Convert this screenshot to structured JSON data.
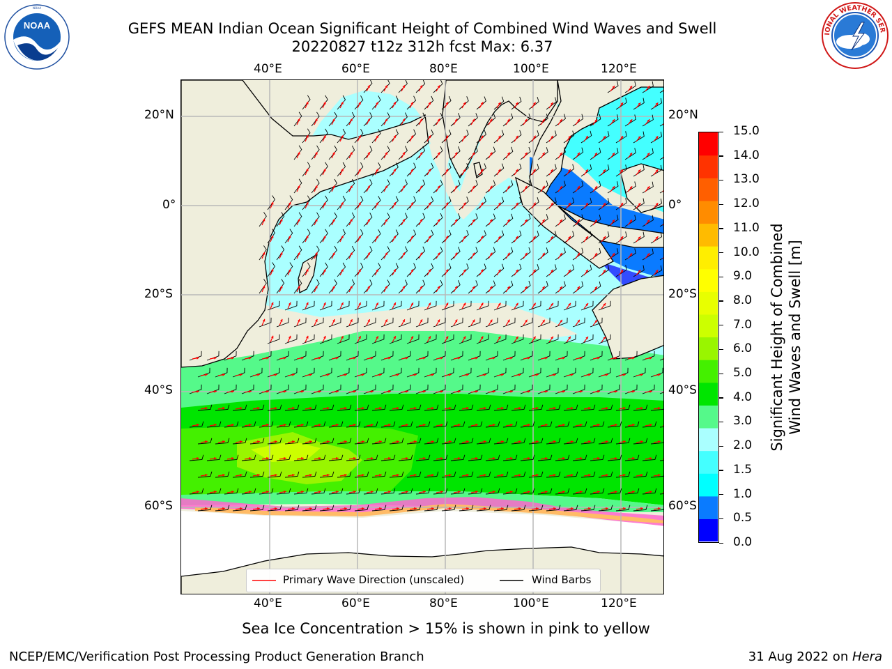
{
  "title": {
    "line1": "GEFS MEAN Indian Ocean Significant Height of Combined Wind Waves and Swell",
    "line2": "20220827 t12z 312h fcst   Max: 6.37"
  },
  "logos": {
    "left": "NOAA",
    "left_ring_text": "NATIONAL OCEANIC AND ATMOSPHERIC ADMINISTRATION · U.S. DEPARTMENT OF COMMERCE",
    "right_ring_text": "NATIONAL WEATHER SERVICE"
  },
  "map": {
    "lon_ticks_top": [
      "40°E",
      "60°E",
      "80°E",
      "100°E",
      "120°E"
    ],
    "lon_ticks_bottom": [
      "40°E",
      "60°E",
      "80°E",
      "100°E",
      "120°E"
    ],
    "lat_ticks_left": [
      "20°N",
      "0°",
      "20°S",
      "40°S",
      "60°S"
    ],
    "lat_ticks_right": [
      "20°N",
      "0°",
      "20°S",
      "40°S",
      "60°S"
    ],
    "land_color": "#efeedc",
    "wave_arrow_color": "#ff0000",
    "barb_color": "#000000"
  },
  "legend": {
    "primary_wave": "Primary Wave Direction (unscaled)",
    "wind_barbs": "Wind Barbs"
  },
  "colorbar": {
    "label_line1": "Significant Height of Combined",
    "label_line2": "Wind Waves and Swell [m]",
    "ticks": [
      "15.0",
      "14.0",
      "13.0",
      "12.0",
      "11.0",
      "10.0",
      "9.0",
      "8.0",
      "7.0",
      "6.0",
      "5.0",
      "4.0",
      "3.0",
      "2.0",
      "1.5",
      "1.0",
      "0.5",
      "0.0"
    ],
    "colors_bottom_to_top": [
      "#0000ff",
      "#0a7bff",
      "#00ffff",
      "#44ffff",
      "#aaffff",
      "#55f98a",
      "#00e500",
      "#44f000",
      "#99f500",
      "#ccff00",
      "#e8ff00",
      "#ffff00",
      "#ffee00",
      "#ffbb00",
      "#ff8c00",
      "#ff5f00",
      "#ff3300",
      "#ff0000"
    ]
  },
  "caption": "Sea Ice Concentration > 15% is shown in pink to yellow",
  "footer": {
    "left": "NCEP/EMC/Verification Post Processing Product Generation Branch",
    "right_prefix": "31 Aug 2022 on ",
    "right_host": "Hera"
  }
}
